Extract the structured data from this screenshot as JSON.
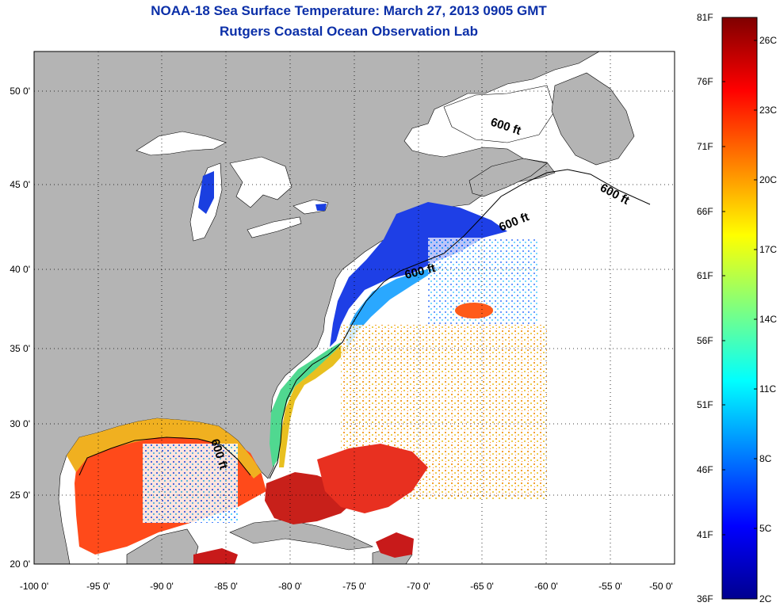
{
  "title": {
    "line1": "NOAA-18 Sea Surface Temperature:  March 27, 2013 0905 GMT",
    "line2": "Rutgers Coastal Ocean Observation Lab"
  },
  "map": {
    "lon_ticks": [
      "-100 0'",
      "-95 0'",
      "-90 0'",
      "-85 0'",
      "-80 0'",
      "-75 0'",
      "-70 0'",
      "-65 0'",
      "-60 0'",
      "-55 0'",
      "-50 0'"
    ],
    "lat_ticks": [
      "50 0'",
      "45 0'",
      "40 0'",
      "35 0'",
      "30 0'",
      "25 0'",
      "20 0'"
    ],
    "lon_range": [
      -100,
      -50
    ],
    "lat_range": [
      20,
      52.5
    ],
    "contour_labels": [
      "600 ft",
      "600 ft",
      "600 ft",
      "600 ft",
      "600 ft"
    ],
    "colors": {
      "land": "#b4b4b4",
      "no_data": "#ffffff",
      "grid": "#000000"
    }
  },
  "colorbar": {
    "fahrenheit_labels": [
      "81F",
      "76F",
      "71F",
      "66F",
      "61F",
      "56F",
      "51F",
      "46F",
      "41F",
      "36F"
    ],
    "celsius_labels": [
      "26C",
      "23C",
      "20C",
      "17C",
      "14C",
      "11C",
      "8C",
      "5C",
      "2C"
    ],
    "range_f": [
      36,
      81
    ],
    "colormap": "jet"
  }
}
